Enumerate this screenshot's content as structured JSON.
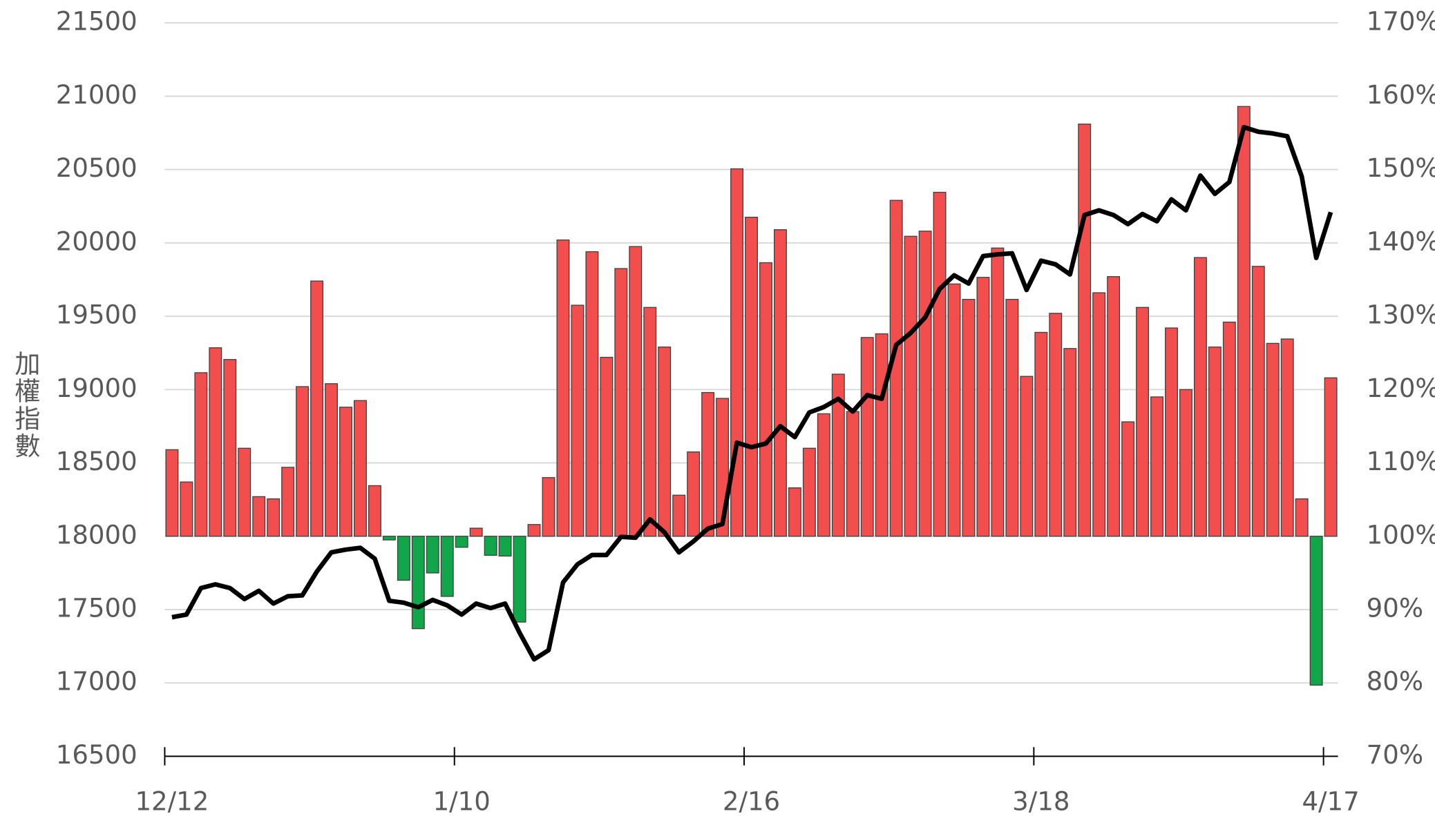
{
  "chart_data": {
    "type": "bar-line",
    "y_label": "加權指數",
    "categories": [
      "12/12",
      null,
      null,
      null,
      null,
      null,
      null,
      null,
      null,
      null,
      null,
      null,
      null,
      null,
      null,
      null,
      null,
      null,
      null,
      null,
      "1/10",
      null,
      null,
      null,
      null,
      null,
      null,
      null,
      null,
      null,
      null,
      null,
      null,
      null,
      null,
      null,
      null,
      null,
      null,
      null,
      "2/16",
      null,
      null,
      null,
      null,
      null,
      null,
      null,
      null,
      null,
      null,
      null,
      null,
      null,
      null,
      null,
      null,
      null,
      null,
      null,
      "3/18",
      null,
      null,
      null,
      null,
      null,
      null,
      null,
      null,
      null,
      null,
      null,
      null,
      null,
      null,
      null,
      null,
      null,
      null,
      null,
      "4/17"
    ],
    "series": [
      {
        "kind": "bar",
        "axis": "y2",
        "color": "#f24e4e",
        "negative_color": "#12a64a",
        "bar_base": 100,
        "values": [
          111.8,
          107.4,
          122.3,
          125.7,
          124.1,
          112.0,
          105.4,
          105.1,
          109.4,
          120.4,
          134.8,
          120.8,
          117.6,
          118.5,
          106.9,
          99.5,
          94.0,
          87.4,
          95.0,
          91.8,
          98.5,
          101.1,
          97.4,
          97.3,
          88.3,
          101.6,
          108.0,
          140.4,
          131.5,
          138.8,
          124.4,
          136.5,
          139.5,
          131.2,
          125.8,
          105.6,
          111.5,
          119.6,
          118.8,
          150.1,
          143.5,
          137.3,
          141.8,
          106.6,
          112.0,
          116.7,
          122.1,
          117.0,
          127.1,
          127.6,
          145.8,
          140.9,
          141.6,
          146.9,
          134.4,
          132.3,
          135.3,
          139.3,
          132.3,
          121.8,
          127.8,
          130.4,
          125.6,
          156.2,
          133.2,
          135.4,
          115.6,
          131.2,
          119.0,
          128.4,
          120.0,
          138.0,
          125.8,
          129.2,
          158.6,
          136.8,
          126.3,
          126.9,
          105.1,
          79.7,
          121.6
        ]
      },
      {
        "kind": "line",
        "axis": "y",
        "color": "#000000",
        "values": [
          17448,
          17466,
          17647,
          17672,
          17647,
          17572,
          17628,
          17541,
          17591,
          17597,
          17759,
          17890,
          17909,
          17921,
          17847,
          17560,
          17547,
          17516,
          17566,
          17529,
          17466,
          17541,
          17510,
          17541,
          17342,
          17161,
          17223,
          17685,
          17809,
          17872,
          17872,
          17996,
          17990,
          18115,
          18027,
          17890,
          17965,
          18052,
          18083,
          18638,
          18607,
          18632,
          18750,
          18676,
          18844,
          18881,
          18937,
          18850,
          18962,
          18937,
          19305,
          19386,
          19492,
          19686,
          19779,
          19723,
          19910,
          19922,
          19929,
          19679,
          19879,
          19854,
          19785,
          20190,
          20222,
          20190,
          20128,
          20197,
          20147,
          20297,
          20222,
          20459,
          20334,
          20415,
          20789,
          20758,
          20746,
          20727,
          20452,
          19898,
          20209
        ]
      }
    ],
    "ylim": [
      16500,
      21500
    ],
    "yticks": [
      16500,
      17000,
      17500,
      18000,
      18500,
      19000,
      19500,
      20000,
      20500,
      21000,
      21500
    ],
    "y2lim": [
      70,
      170
    ],
    "y2ticks": [
      {
        "value": 70,
        "label": "70%"
      },
      {
        "value": 80,
        "label": "80%"
      },
      {
        "value": 90,
        "label": "90%"
      },
      {
        "value": 100,
        "label": "100%"
      },
      {
        "value": 110,
        "label": "110%"
      },
      {
        "value": 120,
        "label": "120%"
      },
      {
        "value": 130,
        "label": "130%"
      },
      {
        "value": 140,
        "label": "140%"
      },
      {
        "value": 150,
        "label": "150%"
      },
      {
        "value": 160,
        "label": "160%"
      },
      {
        "value": 170,
        "label": "170%"
      }
    ],
    "grid": true
  }
}
